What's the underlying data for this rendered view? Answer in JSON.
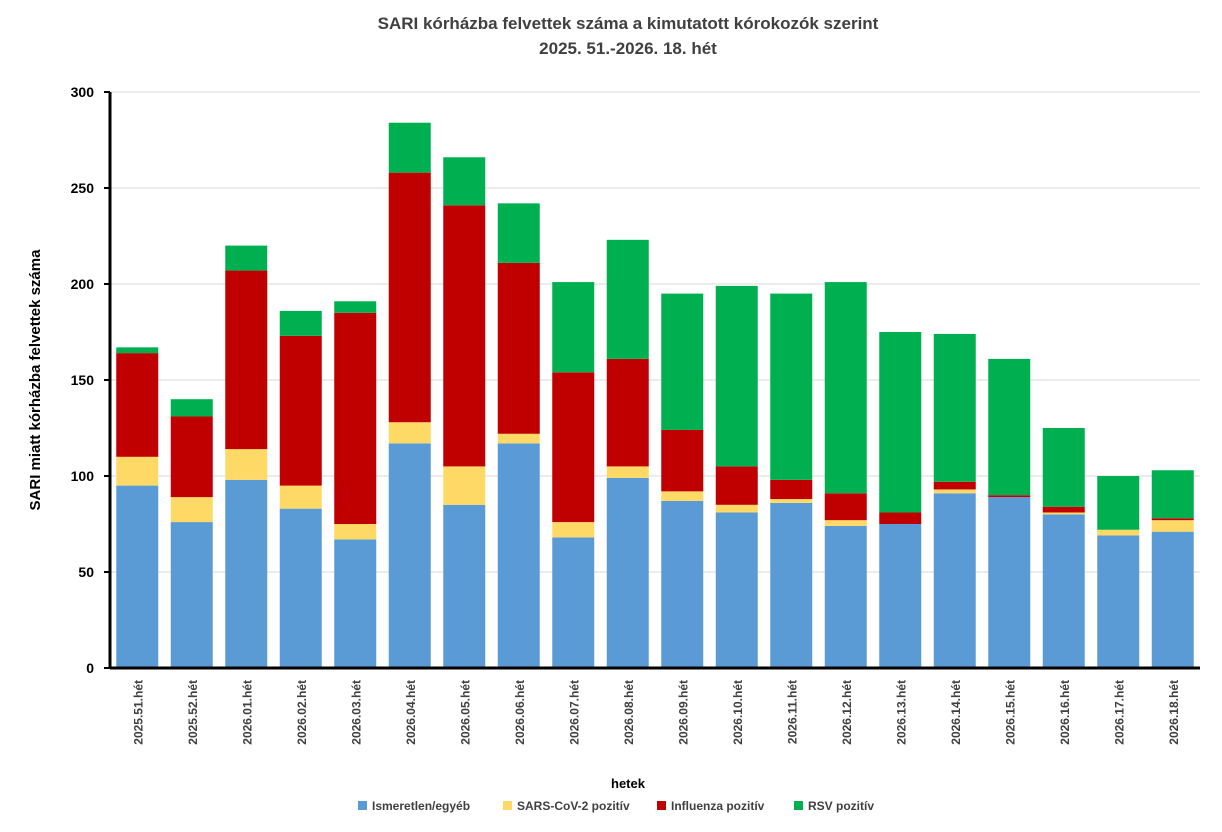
{
  "chart_data": {
    "type": "bar",
    "stacked": true,
    "title": "SARI kórházba felvettek száma a kimutatott kórokozók szerint",
    "subtitle": "2025. 51.-2026. 18. hét",
    "xlabel": "hetek",
    "ylabel": "SARI miatt kórházba felvettek száma",
    "ylim": [
      0,
      300
    ],
    "yticks": [
      0,
      50,
      100,
      150,
      200,
      250,
      300
    ],
    "grid": true,
    "legend_position": "bottom",
    "categories": [
      "2025.51.hét",
      "2025.52.hét",
      "2026.01.hét",
      "2026.02.hét",
      "2026.03.hét",
      "2026.04.hét",
      "2026.05.hét",
      "2026.06.hét",
      "2026.07.hét",
      "2026.08.hét",
      "2026.09.hét",
      "2026.10.hét",
      "2026.11.hét",
      "2026.12.hét",
      "2026.13.hét",
      "2026.14.hét",
      "2026.15.hét",
      "2026.16.hét",
      "2026.17.hét",
      "2026.18.hét"
    ],
    "series": [
      {
        "name": "Ismeretlen/egyéb",
        "color": "#5b9bd5",
        "values": [
          95,
          76,
          98,
          83,
          67,
          117,
          85,
          117,
          68,
          99,
          87,
          81,
          86,
          74,
          75,
          91,
          89,
          80,
          69,
          71
        ]
      },
      {
        "name": "SARS-CoV-2 pozitív",
        "color": "#ffd966",
        "values": [
          15,
          13,
          16,
          12,
          8,
          11,
          20,
          5,
          8,
          6,
          5,
          4,
          2,
          3,
          0,
          2,
          0,
          1,
          3,
          6
        ]
      },
      {
        "name": "Influenza pozitív",
        "color": "#c00000",
        "values": [
          54,
          42,
          93,
          78,
          110,
          130,
          136,
          89,
          78,
          56,
          32,
          20,
          10,
          14,
          6,
          4,
          1,
          3,
          0,
          1
        ]
      },
      {
        "name": "RSV pozitív",
        "color": "#00b050",
        "values": [
          3,
          9,
          13,
          13,
          6,
          26,
          25,
          31,
          47,
          62,
          71,
          94,
          97,
          110,
          94,
          77,
          71,
          41,
          28,
          25
        ]
      }
    ]
  }
}
